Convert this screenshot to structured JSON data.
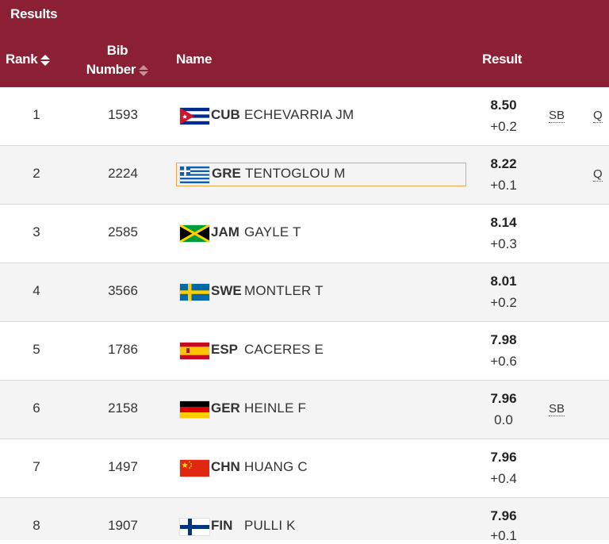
{
  "header": {
    "title": "Results",
    "col_rank": "Rank",
    "col_bib_line1": "Bib",
    "col_bib_line2": "Number",
    "col_name": "Name",
    "col_result": "Result"
  },
  "colors": {
    "header_bg": "#8b1f33",
    "focus_outline": "#f0a94a"
  },
  "rows": [
    {
      "rank": "1",
      "bib": "1593",
      "noc": "CUB",
      "name": "ECHEVARRIA JM",
      "mark": "8.50",
      "wind": "+0.2",
      "note": "SB",
      "qual": "Q",
      "flag": "flag-cuba-icon"
    },
    {
      "rank": "2",
      "bib": "2224",
      "noc": "GRE",
      "name": "TENTOGLOU M",
      "mark": "8.22",
      "wind": "+0.1",
      "note": "",
      "qual": "Q",
      "flag": "flag-greece-icon"
    },
    {
      "rank": "3",
      "bib": "2585",
      "noc": "JAM",
      "name": "GAYLE T",
      "mark": "8.14",
      "wind": "+0.3",
      "note": "",
      "qual": "",
      "flag": "flag-jamaica-icon"
    },
    {
      "rank": "4",
      "bib": "3566",
      "noc": "SWE",
      "name": "MONTLER T",
      "mark": "8.01",
      "wind": "+0.2",
      "note": "",
      "qual": "",
      "flag": "flag-sweden-icon"
    },
    {
      "rank": "5",
      "bib": "1786",
      "noc": "ESP",
      "name": "CACERES E",
      "mark": "7.98",
      "wind": "+0.6",
      "note": "",
      "qual": "",
      "flag": "flag-spain-icon"
    },
    {
      "rank": "6",
      "bib": "2158",
      "noc": "GER",
      "name": "HEINLE F",
      "mark": "7.96",
      "wind": "0.0",
      "note": "SB",
      "qual": "",
      "flag": "flag-germany-icon"
    },
    {
      "rank": "7",
      "bib": "1497",
      "noc": "CHN",
      "name": "HUANG C",
      "mark": "7.96",
      "wind": "+0.4",
      "note": "",
      "qual": "",
      "flag": "flag-china-icon"
    },
    {
      "rank": "8",
      "bib": "1907",
      "noc": "FIN",
      "name": "PULLI K",
      "mark": "7.96",
      "wind": "+0.1",
      "note": "",
      "qual": "",
      "flag": "flag-finland-icon"
    }
  ]
}
